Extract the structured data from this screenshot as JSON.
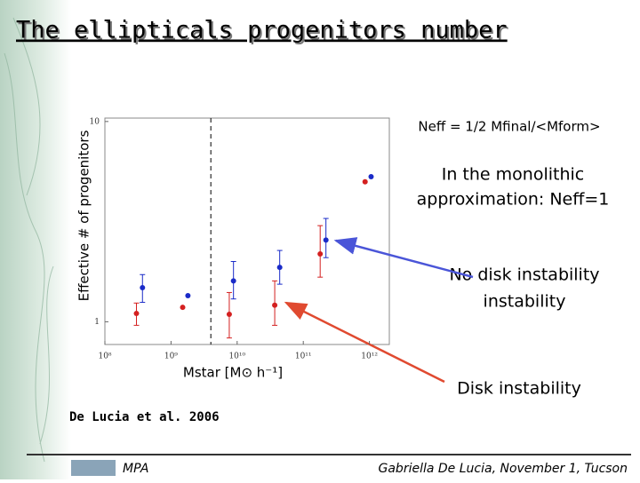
{
  "chart_data": {
    "type": "scatter",
    "title": "The ellipticals progenitors number",
    "xlabel": "Mstar [M⊙ h⁻¹]",
    "ylabel": "Effective # of progenitors",
    "xlog": true,
    "ylog": true,
    "xlim": [
      100000000,
      2000000000000
    ],
    "ylim": [
      0.77,
      10.4
    ],
    "xticks": [
      {
        "value": 100000000,
        "label": "10⁸"
      },
      {
        "value": 1000000000,
        "label": "10⁹"
      },
      {
        "value": 10000000000,
        "label": "10¹⁰"
      },
      {
        "value": 100000000000,
        "label": "10¹¹"
      },
      {
        "value": 1000000000000,
        "label": "10¹²"
      }
    ],
    "yticks": [
      1,
      10
    ],
    "vline": 4000000000,
    "annotations": [
      "Neff = 1/2 Mfinal/<Mform>",
      "In the monolithic",
      "approximation: Neff=1"
    ],
    "series": [
      {
        "name": "No  disk instability",
        "color": "#1a2bc8",
        "x": [
          370000000,
          1800000000,
          8800000000,
          44000000000,
          220000000000,
          1060000000000
        ],
        "values": [
          1.48,
          1.35,
          1.6,
          1.87,
          2.56,
          5.3
        ],
        "lower": [
          1.25,
          null,
          1.3,
          1.54,
          2.09,
          null
        ],
        "upper": [
          1.72,
          null,
          2.0,
          2.27,
          3.28,
          null
        ]
      },
      {
        "name": "Disk instability",
        "color": "#d42020",
        "x": [
          300000000,
          1500000000,
          7600000000,
          37000000000,
          180000000000,
          860000000000
        ],
        "values": [
          1.1,
          1.18,
          1.09,
          1.21,
          2.18,
          5.0
        ],
        "lower": [
          0.96,
          null,
          0.83,
          0.96,
          1.67,
          null
        ],
        "upper": [
          1.24,
          null,
          1.4,
          1.6,
          3.02,
          null
        ]
      }
    ]
  },
  "footer": {
    "reference": "De Lucia et al. 2006",
    "institute": "MPA",
    "author": "Gabriella De Lucia, November 1, Tucson"
  }
}
